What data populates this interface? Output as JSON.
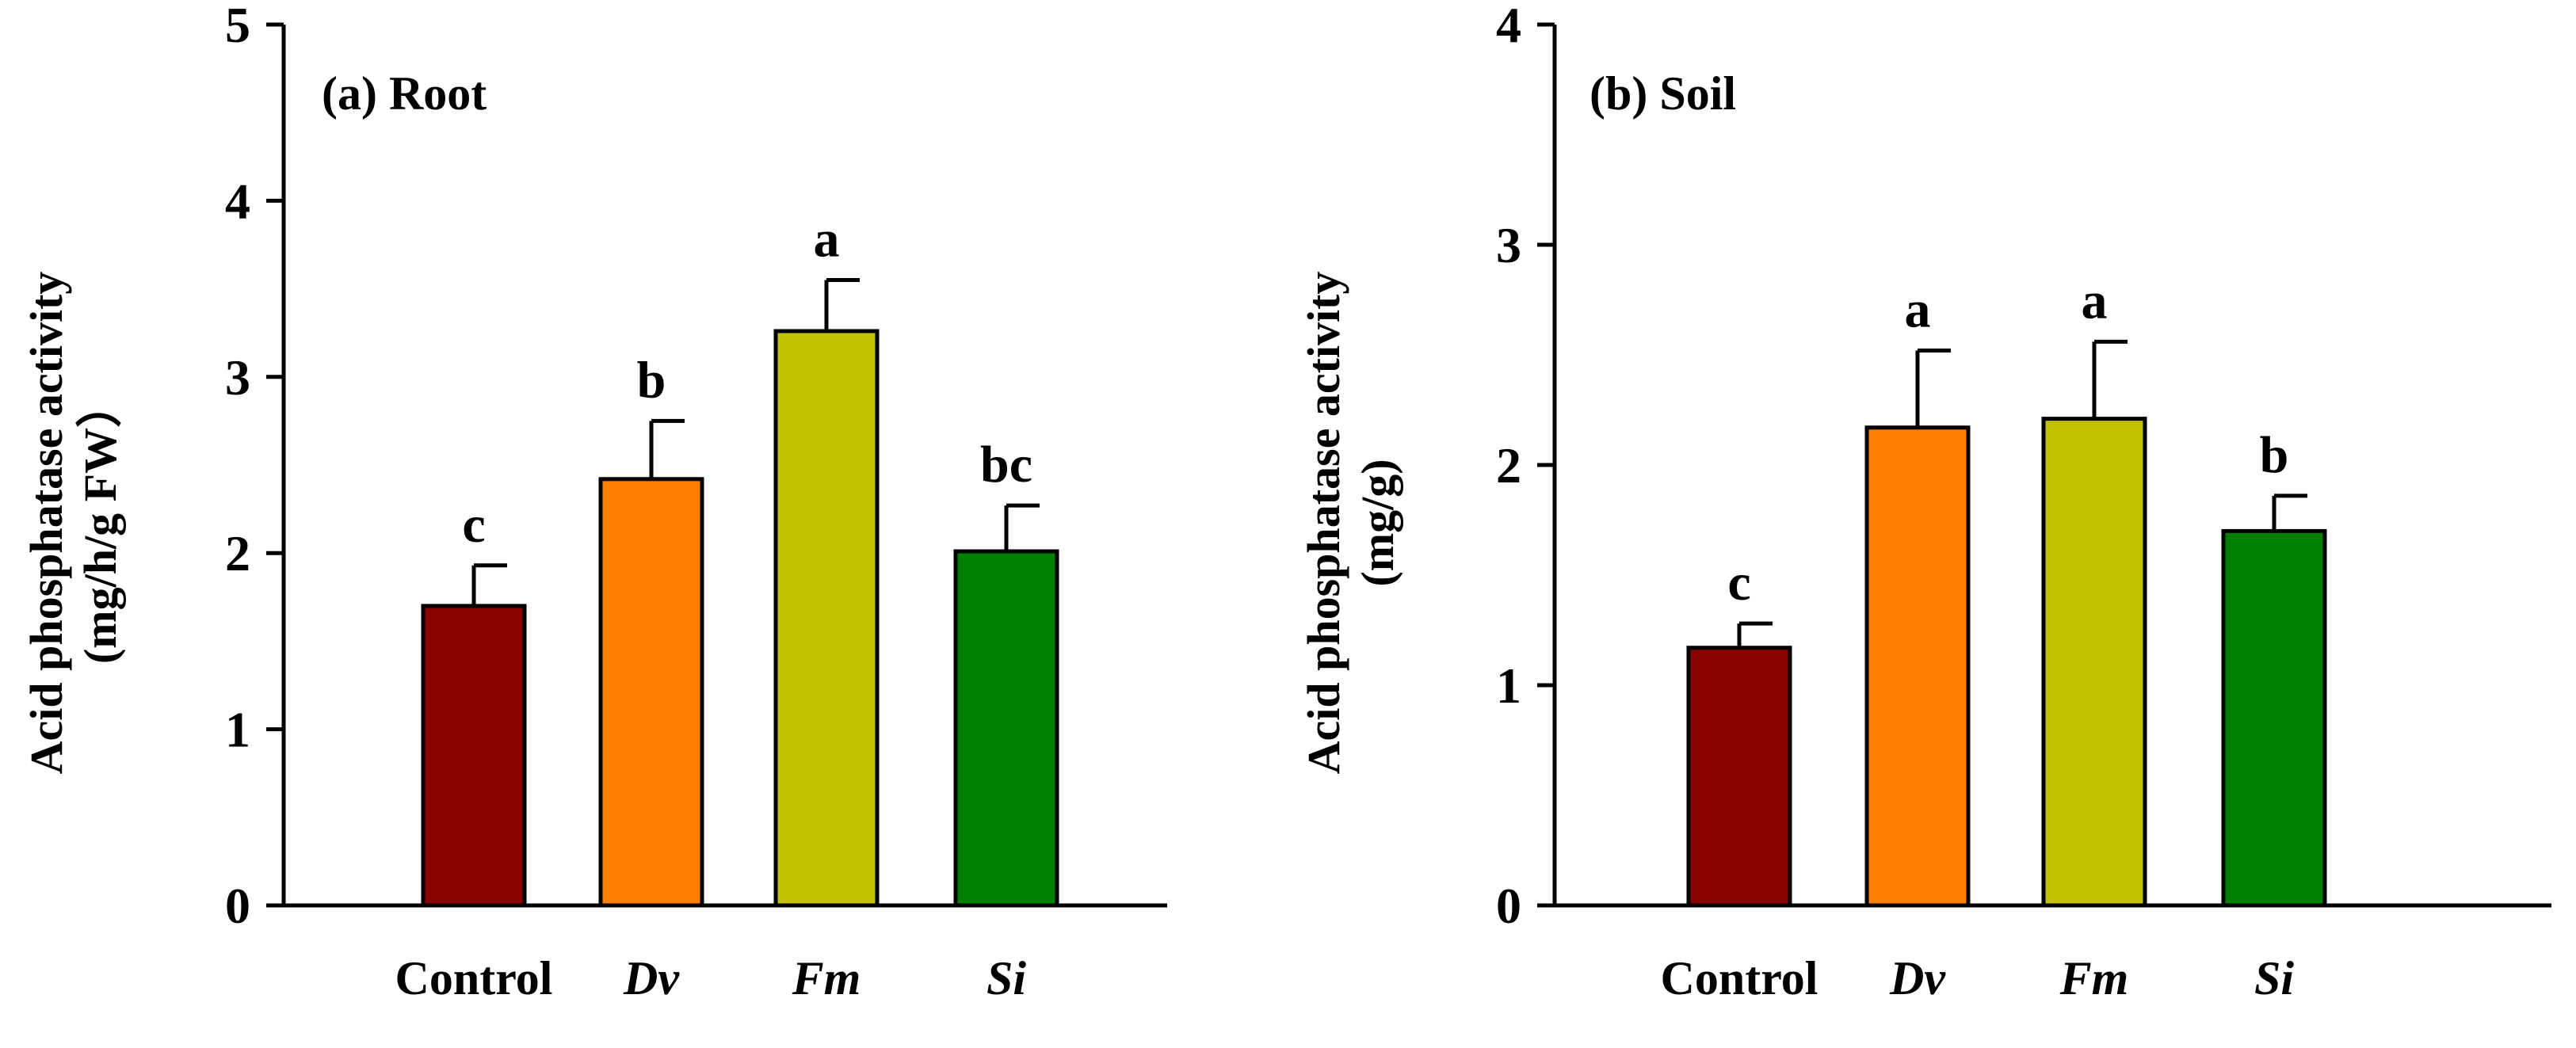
{
  "chart_data": [
    {
      "type": "bar",
      "title": "(a) Root",
      "ylabel_line1": "Acid phosphatase activity",
      "ylabel_line2": "(mg/h/g FW）",
      "xlabel": "",
      "ylim": [
        0,
        5
      ],
      "yticks": [
        "0",
        "1",
        "2",
        "3",
        "4",
        "5"
      ],
      "categories": [
        "Control",
        "Dv",
        "Fm",
        "Si"
      ],
      "italic": [
        false,
        true,
        true,
        true
      ],
      "values": [
        1.7,
        2.42,
        3.26,
        2.01
      ],
      "errors": [
        0.23,
        0.33,
        0.29,
        0.26
      ],
      "letters": [
        "c",
        "b",
        "a",
        "bc"
      ],
      "colors": [
        "#8b0000",
        "#ff8000",
        "#c2c000",
        "#008000"
      ],
      "grid": false
    },
    {
      "type": "bar",
      "title": "(b) Soil",
      "ylabel_line1": "Acid phosphatase activity",
      "ylabel_line2": "(mg/g)",
      "xlabel": "",
      "ylim": [
        0,
        4
      ],
      "yticks": [
        "0",
        "1",
        "2",
        "3",
        "4"
      ],
      "categories": [
        "Control",
        "Dv",
        "Fm",
        "Si"
      ],
      "italic": [
        false,
        true,
        true,
        true
      ],
      "values": [
        1.17,
        2.17,
        2.21,
        1.7
      ],
      "errors": [
        0.11,
        0.35,
        0.35,
        0.16
      ],
      "letters": [
        "c",
        "a",
        "a",
        "b"
      ],
      "colors": [
        "#8b0000",
        "#ff8000",
        "#c2c000",
        "#008000"
      ],
      "grid": false
    }
  ]
}
